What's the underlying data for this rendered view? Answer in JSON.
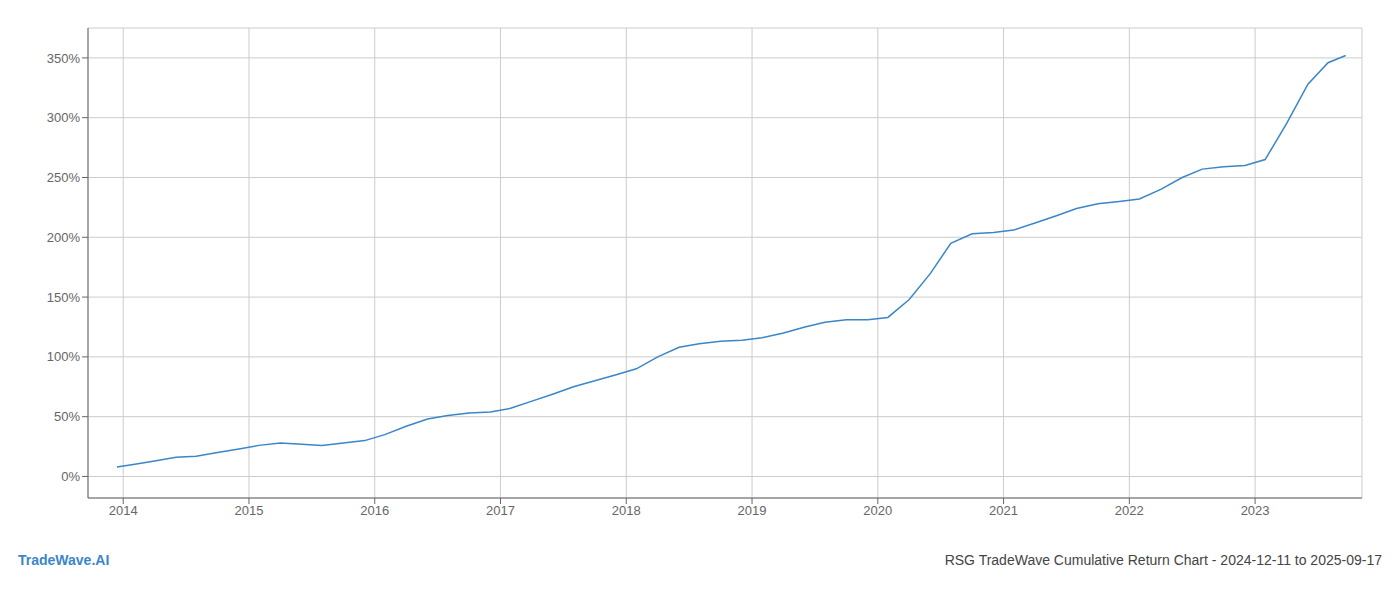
{
  "chart_data": {
    "type": "line",
    "title": "RSG TradeWave Cumulative Return Chart - 2024-12-11 to 2025-09-17",
    "annotations": [
      "TradeWave.AI"
    ],
    "color": "#3a86c8",
    "x": [
      2013.95,
      2014.08,
      2014.25,
      2014.42,
      2014.58,
      2014.75,
      2014.92,
      2015.08,
      2015.25,
      2015.42,
      2015.58,
      2015.75,
      2015.92,
      2016.08,
      2016.25,
      2016.42,
      2016.58,
      2016.75,
      2016.92,
      2017.08,
      2017.25,
      2017.42,
      2017.58,
      2017.75,
      2017.92,
      2018.08,
      2018.25,
      2018.42,
      2018.58,
      2018.75,
      2018.92,
      2019.08,
      2019.25,
      2019.42,
      2019.58,
      2019.75,
      2019.92,
      2020.08,
      2020.25,
      2020.42,
      2020.58,
      2020.75,
      2020.92,
      2021.08,
      2021.25,
      2021.42,
      2021.58,
      2021.75,
      2021.92,
      2022.08,
      2022.25,
      2022.42,
      2022.58,
      2022.75,
      2022.92,
      2023.08,
      2023.25,
      2023.42,
      2023.58,
      2023.72
    ],
    "values": [
      8,
      10,
      13,
      16,
      17,
      20,
      23,
      26,
      28,
      27,
      26,
      28,
      30,
      35,
      42,
      48,
      51,
      53,
      54,
      57,
      63,
      69,
      75,
      80,
      85,
      90,
      100,
      108,
      111,
      113,
      114,
      116,
      120,
      125,
      129,
      131,
      131,
      133,
      148,
      170,
      195,
      203,
      204,
      206,
      212,
      218,
      224,
      228,
      230,
      232,
      240,
      250,
      257,
      259,
      260,
      265,
      295,
      328,
      346,
      352
    ],
    "xlim": [
      2013.72,
      2023.85
    ],
    "xticks": [
      2014,
      2015,
      2016,
      2017,
      2018,
      2019,
      2020,
      2021,
      2022,
      2023
    ],
    "ylim": [
      -18,
      375
    ],
    "yticks": [
      {
        "value": 0,
        "label": "0%"
      },
      {
        "value": 50,
        "label": "50%"
      },
      {
        "value": 100,
        "label": "100%"
      },
      {
        "value": 150,
        "label": "150%"
      },
      {
        "value": 200,
        "label": "200%"
      },
      {
        "value": 250,
        "label": "250%"
      },
      {
        "value": 300,
        "label": "300%"
      },
      {
        "value": 350,
        "label": "350%"
      }
    ],
    "grid": true
  }
}
